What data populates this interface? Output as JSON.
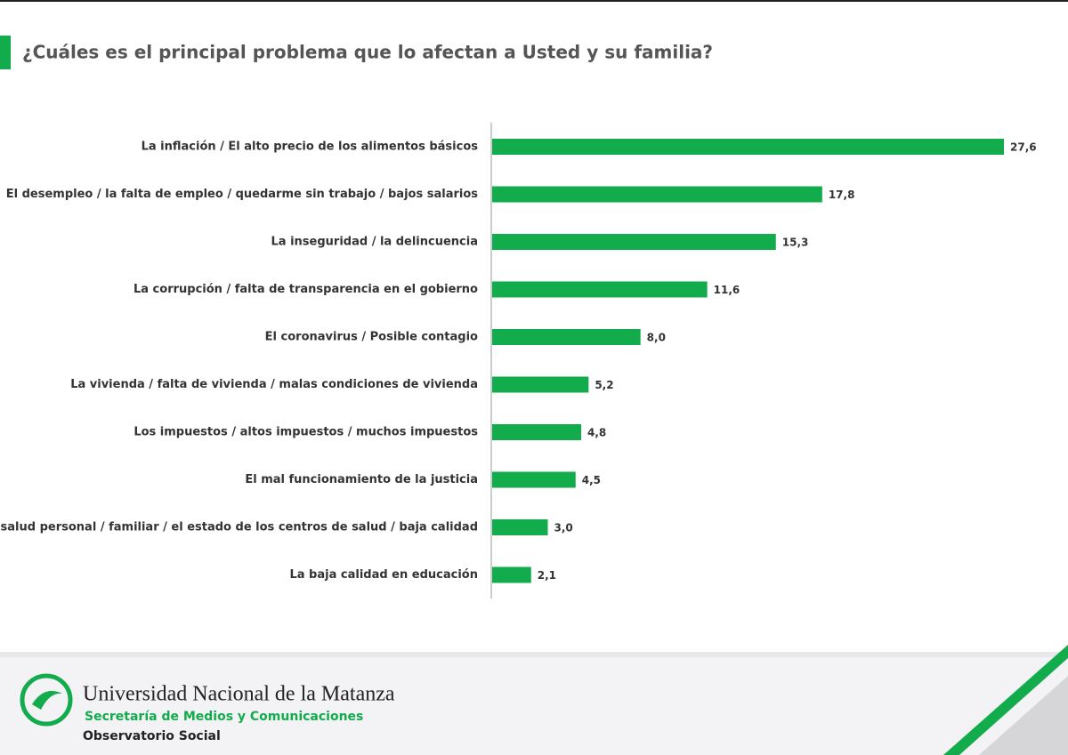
{
  "chart_data": {
    "type": "bar",
    "orientation": "horizontal",
    "title": "¿Cuáles es el principal problema que lo afectan a Usted y su familia?",
    "categories": [
      "La inflación / El alto precio de los alimentos básicos",
      "El desempleo / la falta de empleo / quedarme sin trabajo / bajos salarios",
      "La inseguridad / la delincuencia",
      "La corrupción / falta de transparencia en el gobierno",
      "El coronavirus / Posible contagio",
      "La vivienda / falta de vivienda / malas condiciones de vivienda",
      "Los impuestos / altos impuestos / muchos impuestos",
      "El mal funcionamiento de la justicia",
      "La salud personal / familiar / el estado de los centros de salud / baja calidad",
      "La baja calidad en educación"
    ],
    "values": [
      27.6,
      17.8,
      15.3,
      11.6,
      8.0,
      5.2,
      4.8,
      4.5,
      3.0,
      2.1
    ],
    "value_labels": [
      "27,6",
      "17,8",
      "15,3",
      "11,6",
      "8,0",
      "5,2",
      "4,8",
      "4,5",
      "3,0",
      "2,1"
    ],
    "color": "#12ac4c",
    "xlim": [
      0,
      30
    ]
  },
  "footer": {
    "university": "Universidad Nacional de la Matanza",
    "secretariat": "Secretaría de Medios y Comunicaciones",
    "observatory": "Observatorio Social"
  }
}
